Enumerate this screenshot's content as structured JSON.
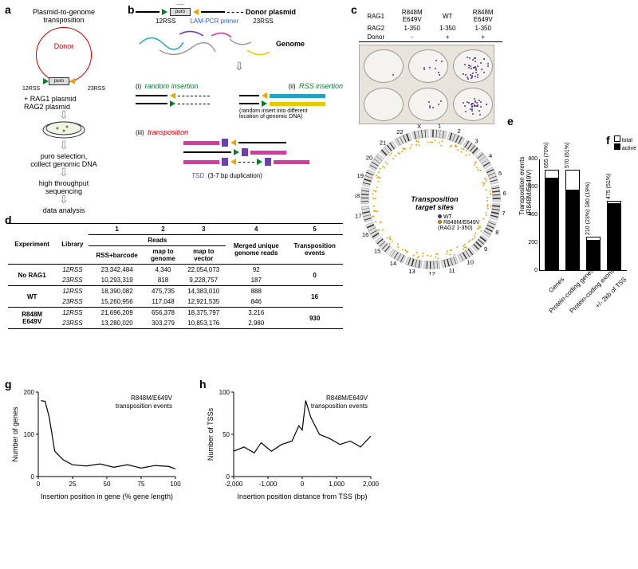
{
  "labels": {
    "a": "a",
    "b": "b",
    "c": "c",
    "d": "d",
    "e": "e",
    "f": "f",
    "g": "g",
    "h": "h"
  },
  "panel_a": {
    "title": "Plasmid-to-genome\ntransposition",
    "donor": "Donor",
    "puro": "puro",
    "rss12": "12RSS",
    "rss23": "23RSS",
    "plus": "+ RAG1 plasmid\n   RAG2 plasmid",
    "step1": "puro selection,\ncollect genomic DNA",
    "step2": "high throughput\nsequencing",
    "step3": "data analysis"
  },
  "panel_b": {
    "donor_plasmid": "Donor plasmid",
    "lam": "LAM-PCR primer",
    "puro": "puro",
    "rss12": "12RSS",
    "rss23": "23RSS",
    "genome": "Genome",
    "i": "(i)",
    "ii": "(ii)",
    "iii": "(iii)",
    "random": "random insertion",
    "rss_ins": "RSS insertion",
    "rss_note": "(random insert into different\nlocation of genomic DNA)",
    "transposition": "transposition",
    "tsd": "TSD",
    "tsd_note": "(3-7 bp duplication)",
    "colors": {
      "cyan": "#1da6c4",
      "blue": "#2a64c8",
      "magenta": "#d63aa0",
      "yellow": "#e8c800",
      "purple": "#6a3fb0",
      "green": "#0a7d2a",
      "orange": "#e8a800"
    }
  },
  "panel_c": {
    "hdr_rag1": "RAG1",
    "hdr_rag2": "RAG2",
    "hdr_donor": "Donor",
    "col1": {
      "rag1": "R848M\nE649V",
      "rag2": "1-350",
      "donor": "-"
    },
    "col2": {
      "rag1": "WT",
      "rag2": "1-350",
      "donor": "+"
    },
    "col3": {
      "rag1": "R848M\nE649V",
      "rag2": "1-350",
      "donor": "+"
    }
  },
  "panel_d": {
    "cols": {
      "experiment": "Experiment",
      "library": "Library",
      "n1": "1",
      "n2": "2",
      "n3": "3",
      "n4": "4",
      "n5": "5",
      "reads": "Reads",
      "c1": "RSS+barcode",
      "c2": "map to\ngenome",
      "c3": "map to\nvector",
      "c4": "Merged unique\ngenome reads",
      "c5": "Transposition\nevents"
    },
    "rows": [
      {
        "exp": "No RAG1",
        "lib": "12RSS",
        "v": [
          "23,342,484",
          "4,340",
          "22,054,073",
          "92"
        ],
        "ev": "0"
      },
      {
        "exp": "",
        "lib": "23RSS",
        "v": [
          "10,293,319",
          "818",
          "9,228,757",
          "187"
        ],
        "ev": ""
      },
      {
        "exp": "WT",
        "lib": "12RSS",
        "v": [
          "18,390,082",
          "475,735",
          "14,383,010",
          "888"
        ],
        "ev": "16"
      },
      {
        "exp": "",
        "lib": "23RSS",
        "v": [
          "15,260,956",
          "117,048",
          "12,921,535",
          "846"
        ],
        "ev": ""
      },
      {
        "exp": "R848M\nE649V",
        "lib": "12RSS",
        "v": [
          "21,696,209",
          "656,378",
          "18,375,797",
          "3,216"
        ],
        "ev": "930"
      },
      {
        "exp": "",
        "lib": "23RSS",
        "v": [
          "13,280,020",
          "303,279",
          "10,853,176",
          "2,980"
        ],
        "ev": ""
      }
    ]
  },
  "panel_e": {
    "chromosomes": [
      "1",
      "2",
      "3",
      "4",
      "5",
      "6",
      "7",
      "8",
      "9",
      "10",
      "11",
      "12",
      "13",
      "14",
      "15",
      "16",
      "17",
      "18",
      "19",
      "20",
      "21",
      "22",
      "X"
    ],
    "center_title": "Transposition\ntarget sites",
    "legend_wt": "WT",
    "legend_mut": "R848M/E649V\n(RAG2 1-350)",
    "colors": {
      "wt": "#4a2a7a",
      "mut": "#e89a00",
      "ideogram": "#888"
    }
  },
  "panel_f": {
    "type": "bar",
    "y_label": "Transposition events\n(R848M/E649V)",
    "legend": {
      "total": "total",
      "active": "active"
    },
    "ylim": [
      0,
      800
    ],
    "ytick_step": 200,
    "categories": [
      "Genes",
      "Protein-coding genes",
      "Protein-coding exons",
      "+/- 2kb of TSS"
    ],
    "total": [
      720,
      720,
      240,
      500
    ],
    "active": [
      655,
      570,
      210,
      475
    ],
    "labels": [
      "655 (70%)",
      "570 (61%)",
      "210 (23%) 180 (19%)",
      "475 (51%)"
    ],
    "bar_border": "#000",
    "fill_total": "#ffffff",
    "fill_active": "#000000"
  },
  "panel_g": {
    "type": "line",
    "title": "R848M/E649V\ntransposition events",
    "x_label": "Insertion position in gene (% gene length)",
    "y_label": "Number of genes",
    "xlim": [
      0,
      100
    ],
    "ylim": [
      0,
      200
    ],
    "xticks": [
      0,
      25,
      50,
      75,
      100
    ],
    "yticks": [
      0,
      100,
      200
    ],
    "data": [
      [
        2,
        180
      ],
      [
        5,
        178
      ],
      [
        8,
        140
      ],
      [
        12,
        60
      ],
      [
        18,
        40
      ],
      [
        25,
        28
      ],
      [
        35,
        25
      ],
      [
        45,
        30
      ],
      [
        55,
        22
      ],
      [
        65,
        28
      ],
      [
        75,
        20
      ],
      [
        85,
        26
      ],
      [
        95,
        24
      ],
      [
        100,
        18
      ]
    ],
    "line_color": "#000000"
  },
  "panel_h": {
    "type": "line",
    "title": "R848M/E649V\ntransposition events",
    "x_label": "Insertion position distance from TSS (bp)",
    "y_label": "Number of TSSs",
    "xlim": [
      -2000,
      2000
    ],
    "ylim": [
      0,
      100
    ],
    "xticks": [
      -2000,
      -1000,
      0,
      1000,
      2000
    ],
    "yticks": [
      0,
      50,
      100
    ],
    "data": [
      [
        -2000,
        30
      ],
      [
        -1700,
        35
      ],
      [
        -1400,
        28
      ],
      [
        -1200,
        40
      ],
      [
        -900,
        30
      ],
      [
        -600,
        38
      ],
      [
        -300,
        42
      ],
      [
        -100,
        60
      ],
      [
        0,
        55
      ],
      [
        100,
        90
      ],
      [
        250,
        70
      ],
      [
        500,
        50
      ],
      [
        800,
        45
      ],
      [
        1100,
        38
      ],
      [
        1400,
        42
      ],
      [
        1700,
        35
      ],
      [
        2000,
        48
      ]
    ],
    "line_color": "#000000"
  }
}
